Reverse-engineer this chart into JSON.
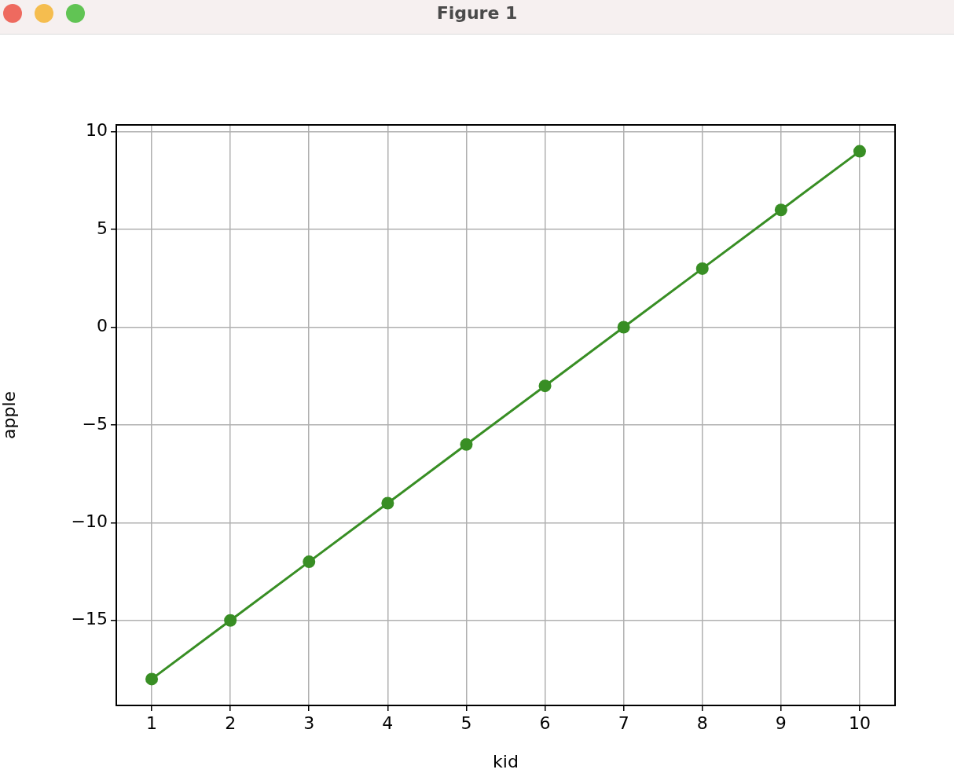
{
  "chart_data": {
    "type": "line",
    "title": "Figure 1",
    "xlabel": "kid",
    "ylabel": "apple",
    "x": [
      1,
      2,
      3,
      4,
      5,
      6,
      7,
      8,
      9,
      10
    ],
    "series": [
      {
        "color": "#388e24",
        "values": [
          -18,
          -15,
          -12,
          -9,
          -6,
          -3,
          0,
          3,
          6,
          9
        ]
      }
    ],
    "xlim": [
      0.55,
      10.45
    ],
    "xticks": [
      1,
      2,
      3,
      4,
      5,
      6,
      7,
      8,
      9,
      10
    ],
    "ylim": [
      -19.35,
      10.35
    ],
    "yticks": [
      {
        "value": -15,
        "label": "−15"
      },
      {
        "value": -10,
        "label": "−10"
      },
      {
        "value": -5,
        "label": "−5"
      },
      0,
      5,
      10
    ],
    "grid": true,
    "legend": false,
    "marker": "circle",
    "line_style": "solid"
  }
}
